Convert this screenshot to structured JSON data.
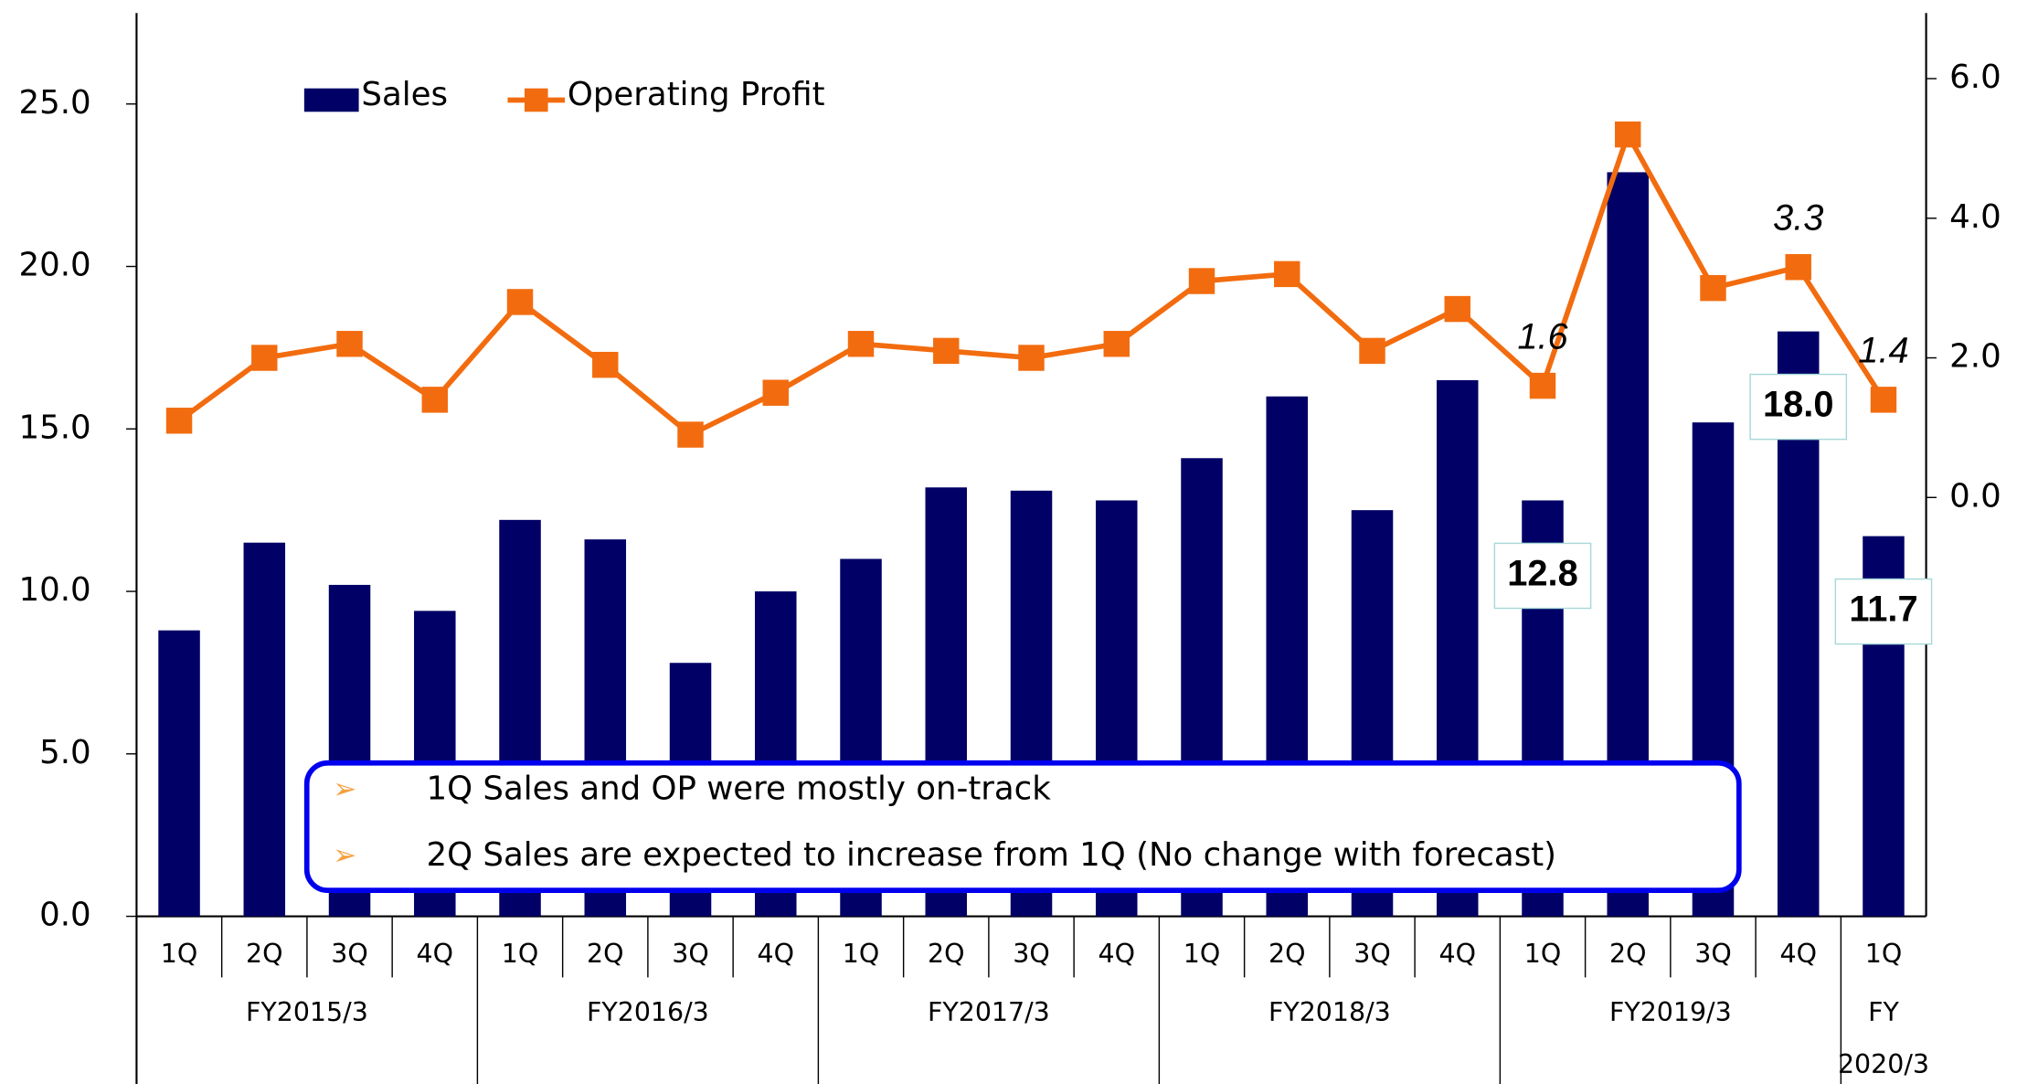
{
  "chart_data": {
    "type": "bar_line",
    "legend": "upper left",
    "categories": [
      "1Q",
      "2Q",
      "3Q",
      "4Q",
      "1Q",
      "2Q",
      "3Q",
      "4Q",
      "1Q",
      "2Q",
      "3Q",
      "4Q",
      "1Q",
      "2Q",
      "3Q",
      "4Q",
      "1Q",
      "2Q",
      "3Q",
      "4Q",
      "1Q"
    ],
    "groups": [
      "FY2015/3",
      "FY2016/3",
      "FY2017/3",
      "FY2018/3",
      "FY2019/3",
      "FY 2020/3"
    ],
    "series": [
      {
        "name": "Sales",
        "type": "bar",
        "color": "#000066",
        "values": [
          8.8,
          11.5,
          10.2,
          9.4,
          12.2,
          11.6,
          7.8,
          10.0,
          11.0,
          13.2,
          13.1,
          12.8,
          14.1,
          16.0,
          12.5,
          16.5,
          12.8,
          22.9,
          15.2,
          18.0,
          11.7
        ],
        "value_labels": [
          null,
          null,
          null,
          null,
          null,
          null,
          null,
          null,
          null,
          null,
          null,
          null,
          null,
          null,
          null,
          null,
          "12.8",
          null,
          null,
          "18.0",
          "11.7"
        ]
      },
      {
        "name": "Operating Profit",
        "type": "line",
        "axis": "y2",
        "color": "#f26c0f",
        "values": [
          1.1,
          2.0,
          2.2,
          1.4,
          2.8,
          1.9,
          0.9,
          1.5,
          2.2,
          2.1,
          2.0,
          2.2,
          3.1,
          3.2,
          2.1,
          2.7,
          1.6,
          5.2,
          3.0,
          3.3,
          1.4
        ],
        "value_labels": [
          null,
          null,
          null,
          null,
          null,
          null,
          null,
          null,
          null,
          null,
          null,
          null,
          null,
          null,
          null,
          null,
          "1.6",
          null,
          null,
          "3.3",
          "1.4"
        ]
      }
    ],
    "ylim": [
      0,
      27.8
    ],
    "yticks": [
      {
        "value": 0,
        "label": "0.0"
      },
      {
        "value": 5,
        "label": "5.0"
      },
      {
        "value": 10,
        "label": "10.0"
      },
      {
        "value": 15,
        "label": "15.0"
      },
      {
        "value": 20,
        "label": "20.0"
      },
      {
        "value": 25,
        "label": "25.0"
      }
    ],
    "y2lim": [
      -6,
      6.94
    ],
    "y2ticks": [
      {
        "value": 0,
        "label": "0.0"
      },
      {
        "value": 2,
        "label": "2.0"
      },
      {
        "value": 4,
        "label": "4.0"
      },
      {
        "value": 6,
        "label": "6.0"
      }
    ],
    "annotations": [
      "1Q Sales and OP were mostly on-track",
      "2Q Sales are expected to increase from 1Q (No change with  forecast)"
    ]
  }
}
